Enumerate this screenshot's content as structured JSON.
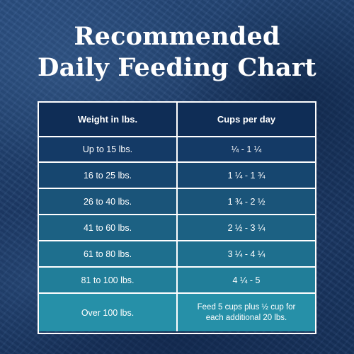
{
  "title": {
    "line1": "Recommended",
    "line2": "Daily Feeding Chart"
  },
  "table": {
    "headers": {
      "weight": "Weight in lbs.",
      "cups": "Cups per day"
    },
    "rows": [
      {
        "weight": "Up to 15 lbs.",
        "cups": "¼  - 1 ¼"
      },
      {
        "weight": "16 to 25 lbs.",
        "cups": "1 ¼  - 1 ¾"
      },
      {
        "weight": "26 to 40 lbs.",
        "cups": "1 ¾  - 2 ½"
      },
      {
        "weight": "41 to 60 lbs.",
        "cups": "2 ½ - 3 ¼"
      },
      {
        "weight": "61 to 80 lbs.",
        "cups": "3 ¼ - 4 ¼"
      },
      {
        "weight": "81 to 100 lbs.",
        "cups": "4 ¼  - 5"
      },
      {
        "weight": "Over 100 lbs.",
        "cups": "Feed 5 cups plus ½ cup for each additional 20 lbs."
      }
    ]
  },
  "colors": {
    "header_bg": "#0f2d56",
    "row_backgrounds": [
      "#143a66",
      "#16466f",
      "#1a5479",
      "#1c6183",
      "#1e6f8e",
      "#217e99",
      "#2690a8"
    ]
  }
}
